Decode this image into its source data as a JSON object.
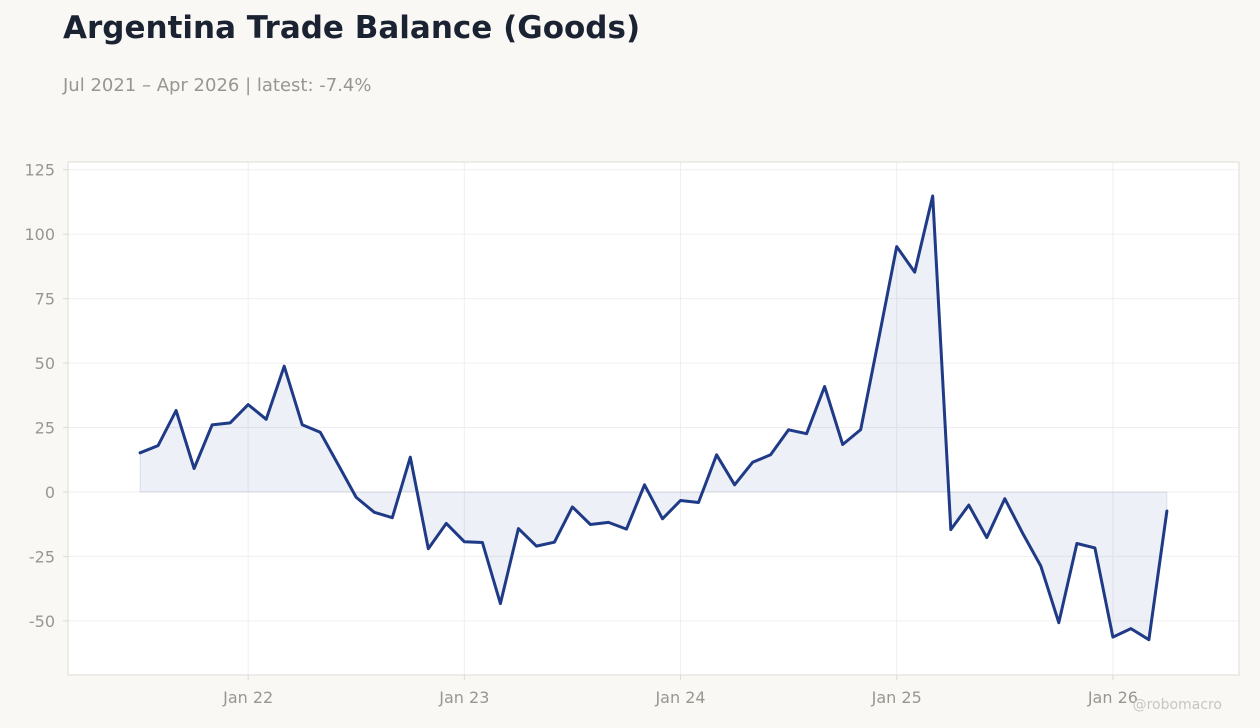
{
  "title": "Argentina Trade Balance (Goods)",
  "subtitle": "Jul 2021 – Apr 2026 | latest: -7.4%",
  "watermark": "@robomacro",
  "colors": {
    "line": "#1f3a86",
    "fill": "#1f3a86",
    "background": "#f9f8f5",
    "plot_background": "#ffffff",
    "grid": "#efefef",
    "frame": "#dddbd6",
    "title": "#1b2333",
    "tick_text": "#999690"
  },
  "chart_data": {
    "type": "area",
    "grid": true,
    "legend": "none",
    "xlabel": "",
    "ylabel": "",
    "xlim": [
      "2021-03",
      "2026-08"
    ],
    "ylim": [
      -71,
      128
    ],
    "yticks": [
      125,
      100,
      75,
      50,
      25,
      0,
      -25,
      -50
    ],
    "ytick_labels": [
      "125",
      "100",
      "75",
      "50",
      "25",
      "0",
      "-25",
      "-50"
    ],
    "xticks": [
      "2022-01",
      "2023-01",
      "2024-01",
      "2025-01",
      "2026-01"
    ],
    "xtick_labels": [
      "Jan 22",
      "Jan 23",
      "Jan 24",
      "Jan 25",
      "Jan 26"
    ],
    "series": [
      {
        "x": [
          "2021-07",
          "2021-08",
          "2021-09",
          "2021-10",
          "2021-11",
          "2021-12",
          "2022-01",
          "2022-02",
          "2022-03",
          "2022-04",
          "2022-05",
          "2022-06",
          "2022-07",
          "2022-08",
          "2022-09",
          "2022-10",
          "2022-11",
          "2022-12",
          "2023-01",
          "2023-02",
          "2023-03",
          "2023-04",
          "2023-05",
          "2023-06",
          "2023-07",
          "2023-08",
          "2023-09",
          "2023-10",
          "2023-11",
          "2023-12",
          "2024-01",
          "2024-02",
          "2024-03",
          "2024-04",
          "2024-05",
          "2024-06",
          "2024-07",
          "2024-08",
          "2024-09",
          "2024-10",
          "2024-11",
          "2024-12",
          "2025-01",
          "2025-02",
          "2025-03",
          "2025-04",
          "2025-05",
          "2025-06",
          "2025-07",
          "2025-08",
          "2025-09",
          "2025-10",
          "2025-11",
          "2025-12",
          "2026-01",
          "2026-02",
          "2026-03",
          "2026-04"
        ],
        "values": [
          15.2,
          18.0,
          31.6,
          9.1,
          26.0,
          26.8,
          33.9,
          28.2,
          48.8,
          26.1,
          23.2,
          10.6,
          -2.1,
          -7.9,
          -10.0,
          13.5,
          -22.0,
          -12.2,
          -19.3,
          -19.6,
          -43.3,
          -14.2,
          -21.0,
          -19.5,
          -5.8,
          -12.6,
          -11.8,
          -14.4,
          2.8,
          -10.4,
          -3.3,
          -4.1,
          14.4,
          2.8,
          11.5,
          14.4,
          24.1,
          22.6,
          40.9,
          18.4,
          24.2,
          59.4,
          95.2,
          85.3,
          114.8,
          -14.6,
          -5.1,
          -17.7,
          -2.6,
          -16.1,
          -28.7,
          -50.7,
          -20.0,
          -21.7,
          -56.3,
          -53.0,
          -57.3,
          -7.4
        ]
      }
    ]
  }
}
